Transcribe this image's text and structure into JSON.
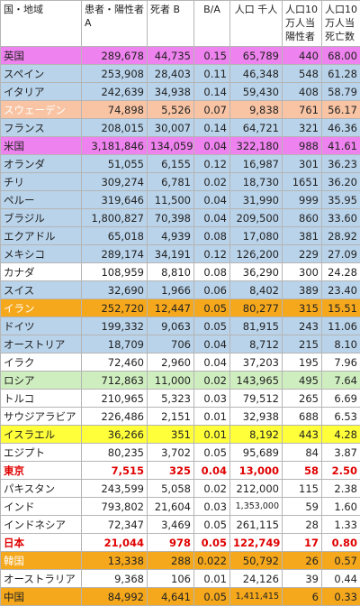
{
  "colors": {
    "magenta": "#ee82ee",
    "blue": "#b9d3ea",
    "salmon": "#f9c4a4",
    "orange": "#f5a81c",
    "white": "#ffffff",
    "green": "#cfeec0",
    "yellow": "#ffff3a"
  },
  "header": {
    "col0": "国・地域",
    "col1": "患者・陽性者 A",
    "col2": "死者 B",
    "col3": "B/A",
    "col4": "人口 千人",
    "col5": "人口10万人当陽性者",
    "col6": "人口10万人当死亡数"
  },
  "rows": [
    {
      "name": "英国",
      "a": "289,678",
      "b": "44,735",
      "ba": "0.15",
      "pop": "65,789",
      "p10": "440",
      "d10": "68.00",
      "color": "magenta",
      "name_color": "",
      "bold": false
    },
    {
      "name": "スペイン",
      "a": "253,908",
      "b": "28,403",
      "ba": "0.11",
      "pop": "46,348",
      "p10": "548",
      "d10": "61.28",
      "color": "blue",
      "name_color": "",
      "bold": false
    },
    {
      "name": "イタリア",
      "a": "242,639",
      "b": "34,938",
      "ba": "0.14",
      "pop": "59,430",
      "p10": "408",
      "d10": "58.79",
      "color": "blue",
      "name_color": "",
      "bold": false
    },
    {
      "name": "スウェーデン",
      "a": "74,898",
      "b": "5,526",
      "ba": "0.07",
      "pop": "9,838",
      "p10": "761",
      "d10": "56.17",
      "color": "salmon",
      "name_color": "#ffffff",
      "bold": false
    },
    {
      "name": "フランス",
      "a": "208,015",
      "b": "30,007",
      "ba": "0.14",
      "pop": "64,721",
      "p10": "321",
      "d10": "46.36",
      "color": "blue",
      "name_color": "",
      "bold": false
    },
    {
      "name": "米国",
      "a": "3,181,846",
      "b": "134,059",
      "ba": "0.04",
      "pop": "322,180",
      "p10": "988",
      "d10": "41.61",
      "color": "magenta",
      "name_color": "",
      "bold": false
    },
    {
      "name": "オランダ",
      "a": "51,055",
      "b": "6,155",
      "ba": "0.12",
      "pop": "16,987",
      "p10": "301",
      "d10": "36.23",
      "color": "blue",
      "name_color": "",
      "bold": false
    },
    {
      "name": "チリ",
      "a": "309,274",
      "b": "6,781",
      "ba": "0.02",
      "pop": "18,730",
      "p10": "1651",
      "d10": "36.20",
      "color": "blue",
      "name_color": "",
      "bold": false
    },
    {
      "name": "ペルー",
      "a": "319,646",
      "b": "11,500",
      "ba": "0.04",
      "pop": "31,990",
      "p10": "999",
      "d10": "35.95",
      "color": "blue",
      "name_color": "",
      "bold": false
    },
    {
      "name": "ブラジル",
      "a": "1,800,827",
      "b": "70,398",
      "ba": "0.04",
      "pop": "209,500",
      "p10": "860",
      "d10": "33.60",
      "color": "blue",
      "name_color": "",
      "bold": false
    },
    {
      "name": "エクアドル",
      "a": "65,018",
      "b": "4,939",
      "ba": "0.08",
      "pop": "17,080",
      "p10": "381",
      "d10": "28.92",
      "color": "blue",
      "name_color": "",
      "bold": false
    },
    {
      "name": "メキシコ",
      "a": "289,174",
      "b": "34,191",
      "ba": "0.12",
      "pop": "126,200",
      "p10": "229",
      "d10": "27.09",
      "color": "blue",
      "name_color": "",
      "bold": false
    },
    {
      "name": "カナダ",
      "a": "108,959",
      "b": "8,810",
      "ba": "0.08",
      "pop": "36,290",
      "p10": "300",
      "d10": "24.28",
      "color": "white",
      "name_color": "",
      "bold": false
    },
    {
      "name": "スイス",
      "a": "32,690",
      "b": "1,966",
      "ba": "0.06",
      "pop": "8,402",
      "p10": "389",
      "d10": "23.40",
      "color": "blue",
      "name_color": "",
      "bold": false
    },
    {
      "name": "イラン",
      "a": "252,720",
      "b": "12,447",
      "ba": "0.05",
      "pop": "80,277",
      "p10": "315",
      "d10": "15.51",
      "color": "orange",
      "name_color": "#ffffff",
      "bold": false
    },
    {
      "name": "ドイツ",
      "a": "199,332",
      "b": "9,063",
      "ba": "0.05",
      "pop": "81,915",
      "p10": "243",
      "d10": "11.06",
      "color": "blue",
      "name_color": "",
      "bold": false
    },
    {
      "name": "オーストリア",
      "a": "18,709",
      "b": "706",
      "ba": "0.04",
      "pop": "8,712",
      "p10": "215",
      "d10": "8.10",
      "color": "blue",
      "name_color": "",
      "bold": false
    },
    {
      "name": "イラク",
      "a": "72,460",
      "b": "2,960",
      "ba": "0.04",
      "pop": "37,203",
      "p10": "195",
      "d10": "7.96",
      "color": "white",
      "name_color": "",
      "bold": false
    },
    {
      "name": "ロシア",
      "a": "712,863",
      "b": "11,000",
      "ba": "0.02",
      "pop": "143,965",
      "p10": "495",
      "d10": "7.64",
      "color": "green",
      "name_color": "",
      "bold": false
    },
    {
      "name": "トルコ",
      "a": "210,965",
      "b": "5,323",
      "ba": "0.03",
      "pop": "79,512",
      "p10": "265",
      "d10": "6.69",
      "color": "white",
      "name_color": "",
      "bold": false
    },
    {
      "name": "サウジアラビア",
      "a": "226,486",
      "b": "2,151",
      "ba": "0.01",
      "pop": "32,938",
      "p10": "688",
      "d10": "6.53",
      "color": "white",
      "name_color": "",
      "bold": false
    },
    {
      "name": "イスラエル",
      "a": "36,266",
      "b": "351",
      "ba": "0.01",
      "pop": "8,192",
      "p10": "443",
      "d10": "4.28",
      "color": "yellow",
      "name_color": "",
      "bold": false
    },
    {
      "name": "エジプト",
      "a": "80,235",
      "b": "3,702",
      "ba": "0.05",
      "pop": "95,689",
      "p10": "84",
      "d10": "3.87",
      "color": "white",
      "name_color": "",
      "bold": false
    },
    {
      "name": "東京",
      "a": "7,515",
      "b": "325",
      "ba": "0.04",
      "pop": "13,000",
      "p10": "58",
      "d10": "2.50",
      "color": "white",
      "name_color": "",
      "bold": true
    },
    {
      "name": "パキスタン",
      "a": "243,599",
      "b": "5,058",
      "ba": "0.02",
      "pop": "212,000",
      "p10": "115",
      "d10": "2.38",
      "color": "white",
      "name_color": "",
      "bold": false
    },
    {
      "name": "インド",
      "a": "793,802",
      "b": "21,604",
      "ba": "0.03",
      "pop": "1,353,000",
      "p10": "59",
      "d10": "1.60",
      "color": "white",
      "name_color": "",
      "bold": false,
      "pop_small": true
    },
    {
      "name": "インドネシア",
      "a": "72,347",
      "b": "3,469",
      "ba": "0.05",
      "pop": "261,115",
      "p10": "28",
      "d10": "1.33",
      "color": "white",
      "name_color": "",
      "bold": false
    },
    {
      "name": "日本",
      "a": "21,044",
      "b": "978",
      "ba": "0.05",
      "pop": "122,749",
      "p10": "17",
      "d10": "0.80",
      "color": "white",
      "name_color": "",
      "bold": true
    },
    {
      "name": "韓国",
      "a": "13,338",
      "b": "288",
      "ba": "0.022",
      "pop": "50,792",
      "p10": "26",
      "d10": "0.57",
      "color": "orange",
      "name_color": "#ffffff",
      "bold": false
    },
    {
      "name": "オーストラリア",
      "a": "9,368",
      "b": "106",
      "ba": "0.01",
      "pop": "24,126",
      "p10": "39",
      "d10": "0.44",
      "color": "white",
      "name_color": "",
      "bold": false
    },
    {
      "name": "中国",
      "a": "84,992",
      "b": "4,641",
      "ba": "0.05",
      "pop": "1,411,415",
      "p10": "6",
      "d10": "0.33",
      "color": "orange",
      "name_color": "",
      "bold": false,
      "pop_small": true
    }
  ]
}
